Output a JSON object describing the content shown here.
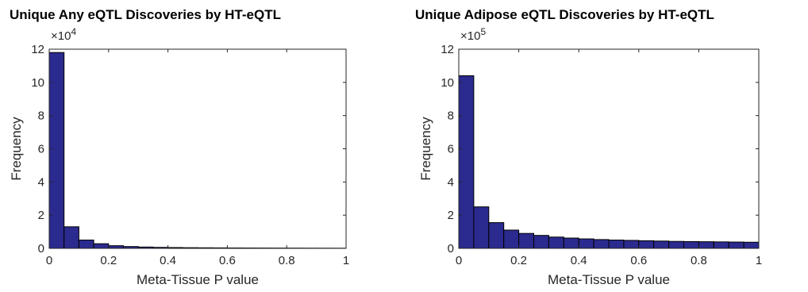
{
  "chart_data": [
    {
      "type": "bar",
      "title": "Unique Any eQTL Discoveries by HT-eQTL",
      "xlabel": "Meta-Tissue P value",
      "ylabel": "Frequency",
      "y_multiplier_base": "×10",
      "y_multiplier_exp": "4",
      "xlim": [
        0,
        1
      ],
      "ylim": [
        0,
        12
      ],
      "xticks": [
        "0",
        "0.2",
        "0.4",
        "0.6",
        "0.8",
        "1"
      ],
      "yticks": [
        "0",
        "2",
        "4",
        "6",
        "8",
        "10",
        "12"
      ],
      "bin_width": 0.05,
      "values": [
        11.8,
        1.3,
        0.5,
        0.28,
        0.16,
        0.11,
        0.08,
        0.06,
        0.05,
        0.04,
        0.035,
        0.03,
        0.025,
        0.022,
        0.02,
        0.018,
        0.016,
        0.014,
        0.012,
        0.01
      ],
      "color": "#2b2a8e"
    },
    {
      "type": "bar",
      "title": "Unique Adipose eQTL Discoveries by HT-eQTL",
      "xlabel": "Meta-Tissue P value",
      "ylabel": "Frequency",
      "y_multiplier_base": "×10",
      "y_multiplier_exp": "5",
      "xlim": [
        0,
        1
      ],
      "ylim": [
        0,
        12
      ],
      "xticks": [
        "0",
        "0.2",
        "0.4",
        "0.6",
        "0.8",
        "1"
      ],
      "yticks": [
        "0",
        "2",
        "4",
        "6",
        "8",
        "10",
        "12"
      ],
      "bin_width": 0.05,
      "values": [
        10.4,
        2.5,
        1.55,
        1.1,
        0.9,
        0.78,
        0.68,
        0.62,
        0.57,
        0.53,
        0.5,
        0.48,
        0.46,
        0.44,
        0.42,
        0.41,
        0.4,
        0.39,
        0.38,
        0.37
      ],
      "color": "#2b2a8e"
    }
  ]
}
